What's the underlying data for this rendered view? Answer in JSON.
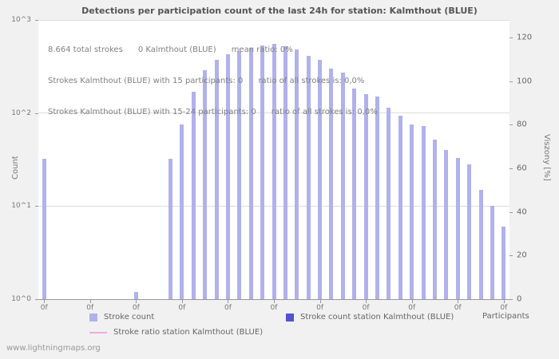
{
  "watermark": "www.lightningmaps.org",
  "chart_data": {
    "type": "bar",
    "title": "Detections per participation count of the last 24h for station: Kalmthout (BLUE)",
    "annotations": [
      "8.664 total strokes      0 Kalmthout (BLUE)      mean ratio: 0%",
      "Strokes Kalmthout (BLUE) with 15 participants: 0      ratio of all strokes is: 0,0%",
      "Strokes Kalmthout (BLUE) with 15-24 participants: 0      ratio of all strokes is: 0,0%"
    ],
    "xlabel": "Participants",
    "ylabel_left": "Count",
    "ylabel_right": "Viszony [%]",
    "y_left": {
      "scale": "log",
      "min": 1,
      "max": 1000,
      "ticks": [
        "10^0",
        "10^1",
        "10^2",
        "10^3"
      ]
    },
    "y_right": {
      "scale": "linear",
      "min": 0,
      "max": 128,
      "ticks": [
        0,
        20,
        40,
        60,
        80,
        100,
        120
      ]
    },
    "x_ticks": [
      "0f",
      "0f",
      "0f",
      "0f",
      "0f",
      "0f",
      "0f",
      "0f",
      "0f",
      "0f",
      "0f"
    ],
    "grid": "horizontal",
    "legend_position": "bottom",
    "series": [
      {
        "name": "Stroke count",
        "type": "bar",
        "color": "#b1b1ec",
        "values": [
          32,
          0,
          0,
          0,
          0,
          0,
          0,
          0,
          1.2,
          0,
          0,
          32,
          75,
          170,
          290,
          370,
          430,
          460,
          500,
          530,
          550,
          520,
          480,
          410,
          370,
          300,
          270,
          185,
          160,
          150,
          115,
          93,
          76,
          72,
          52,
          40,
          33,
          28,
          15,
          10,
          6
        ]
      },
      {
        "name": "Stroke count station Kalmthout (BLUE)",
        "type": "bar",
        "color": "#5252d4",
        "values": []
      },
      {
        "name": "Stroke ratio station Kalmthout (BLUE)",
        "type": "line",
        "color": "#eeaade",
        "values": []
      }
    ]
  }
}
